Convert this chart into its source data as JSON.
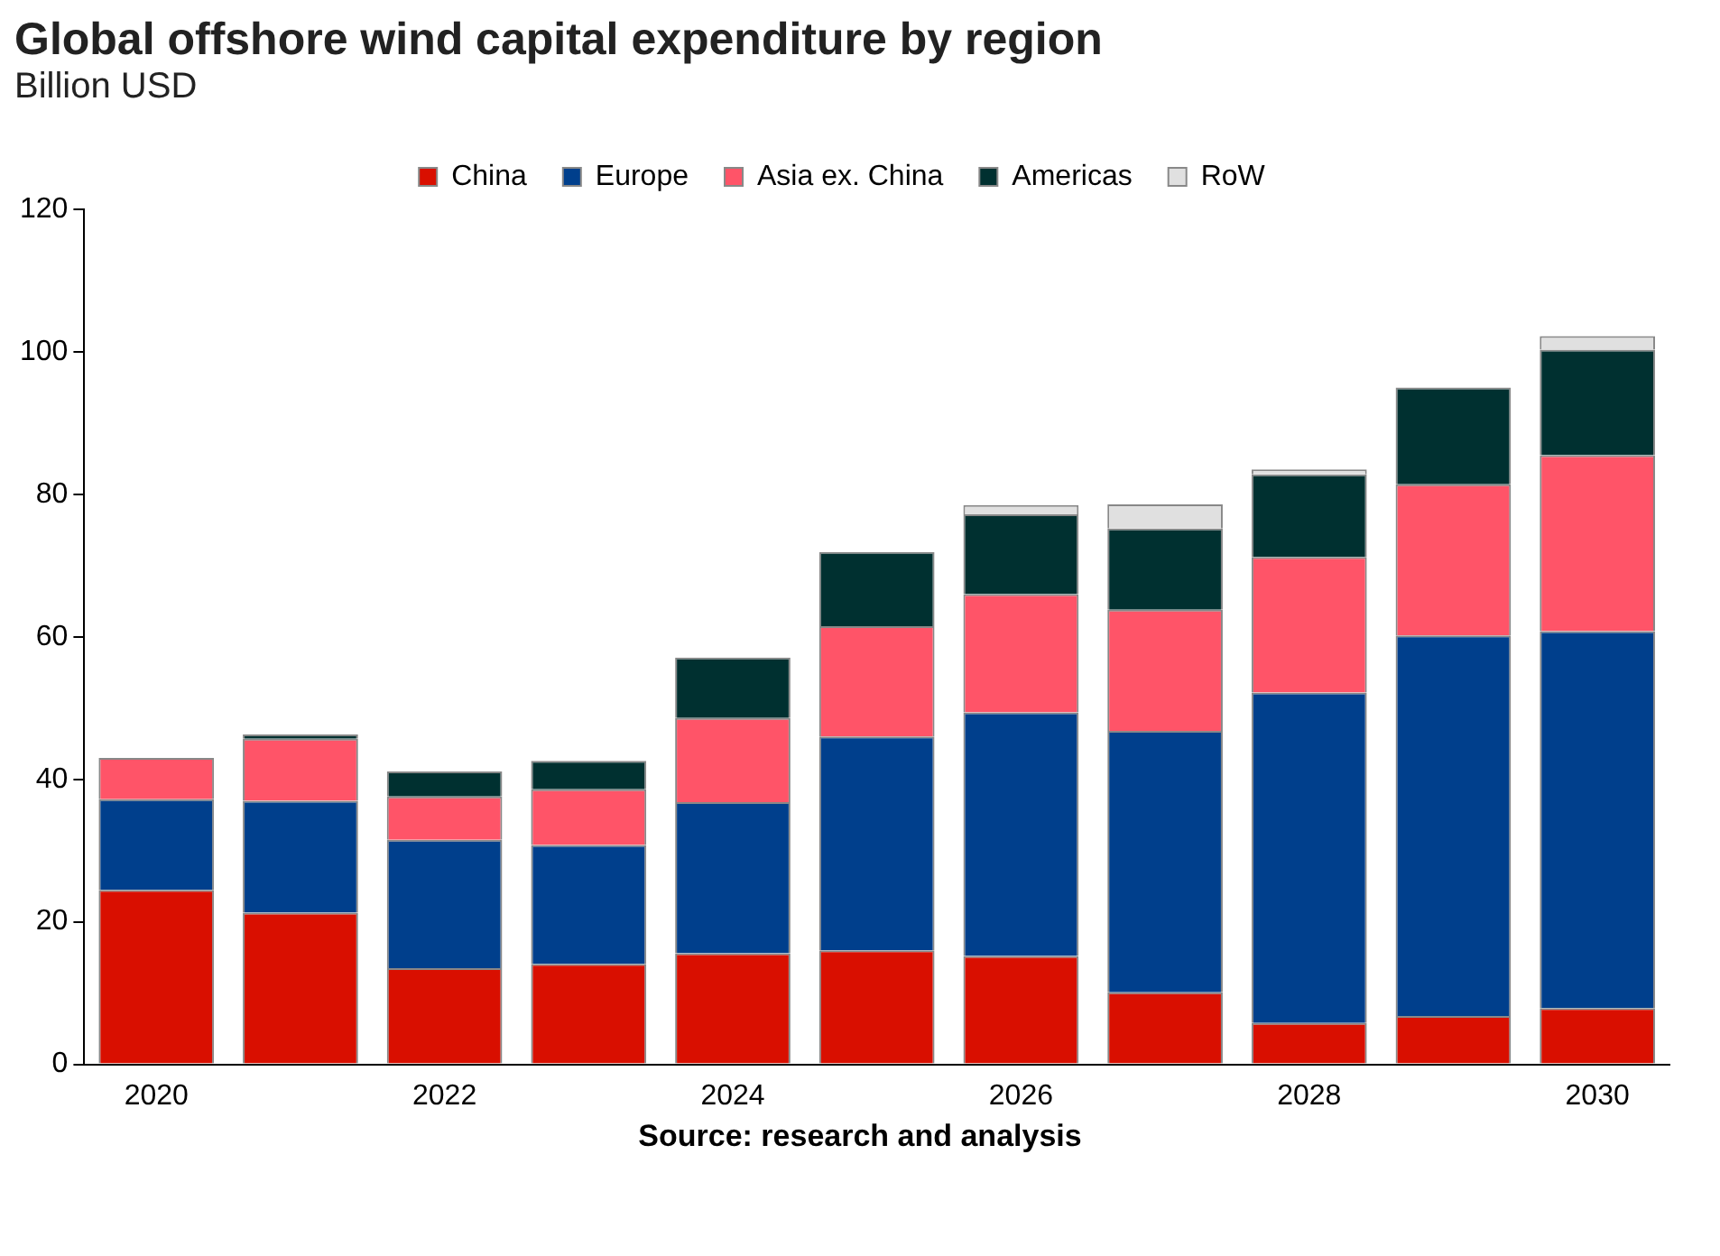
{
  "chart_data": {
    "type": "bar",
    "title": "Global offshore wind capital expenditure by region",
    "subtitle": "Billion USD",
    "categories": [
      "2020",
      null,
      "2022",
      null,
      "2024",
      null,
      "2026",
      null,
      "2028",
      null,
      "2030"
    ],
    "series": [
      {
        "name": "China",
        "color": "#d90f00",
        "values": [
          24.5,
          21.3,
          13.5,
          14.1,
          15.6,
          16.0,
          15.2,
          10.1,
          5.8,
          6.8,
          7.9
        ]
      },
      {
        "name": "Europe",
        "color": "#003f8c",
        "values": [
          12.7,
          15.7,
          18.0,
          16.7,
          21.2,
          30.0,
          34.2,
          36.7,
          46.4,
          53.4,
          52.9
        ]
      },
      {
        "name": "Asia ex. China",
        "color": "#ff5468",
        "values": [
          5.8,
          8.7,
          6.1,
          7.8,
          11.8,
          15.5,
          16.6,
          17.0,
          19.0,
          21.2,
          24.7
        ]
      },
      {
        "name": "Americas",
        "color": "#003030",
        "values": [
          0,
          0.6,
          3.5,
          4.0,
          8.5,
          10.4,
          11.2,
          11.4,
          11.6,
          13.6,
          14.8
        ]
      },
      {
        "name": "RoW",
        "color": "#e0e0e0",
        "values": [
          0,
          0,
          0,
          0,
          0,
          0,
          1.3,
          3.4,
          0.7,
          0,
          1.9
        ]
      }
    ],
    "stacked": true,
    "ylim": [
      0,
      120
    ],
    "yticks": [
      0,
      20,
      40,
      60,
      80,
      100,
      120
    ],
    "grid": false,
    "legend": "top",
    "annotations": [
      "Source: research and analysis"
    ]
  }
}
